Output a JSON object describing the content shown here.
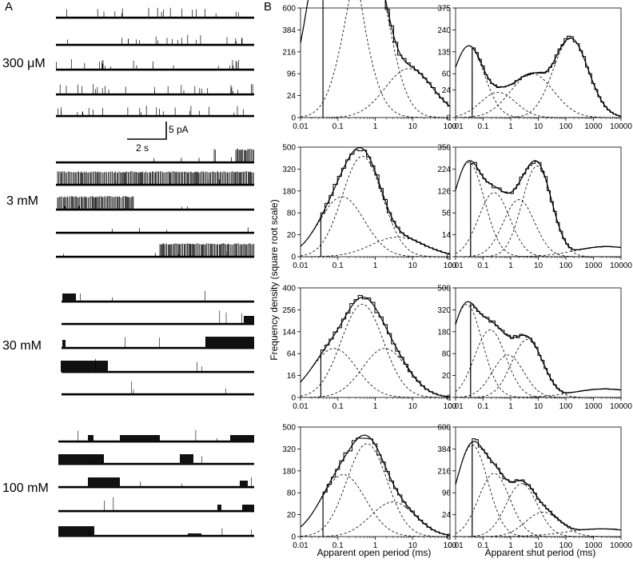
{
  "figure": {
    "panel_a_label": "A",
    "panel_b_label": "B",
    "scale_bar": {
      "current_label": "5 pA",
      "time_label": "2 s"
    },
    "y_axis_label": "Frequency density (square root scale)",
    "x_axis_label_open": "Apparent open period (ms)",
    "x_axis_label_shut": "Apparent shut period (ms)"
  },
  "traces": [
    {
      "concentration": "300 μM",
      "pattern": "brief-openings"
    },
    {
      "concentration": "3 mM",
      "pattern": "clustered-bursts"
    },
    {
      "concentration": "30 mM",
      "pattern": "reduced-amplitude-clusters"
    },
    {
      "concentration": "100 mM",
      "pattern": "sparse-block-clusters"
    }
  ],
  "chart_data": [
    {
      "type": "line",
      "panel": "open-300uM",
      "concentration": "300 μM",
      "xscale": "log",
      "yscale": "sqrt",
      "xlim": [
        0.01,
        100
      ],
      "ylim": [
        0,
        600
      ],
      "x_ticks": [
        "0.01",
        "0.1",
        "1",
        "10",
        "100"
      ],
      "y_ticks": [
        "0",
        "24",
        "96",
        "216",
        "384",
        "600"
      ],
      "resolution_ms": 0.04,
      "components": [
        {
          "area": 2800,
          "mode": 0.08,
          "width": 0.42
        },
        {
          "area": 1500,
          "mode": 0.6,
          "width": 0.38
        },
        {
          "area": 120,
          "mode": 8,
          "width": 0.45
        }
      ]
    },
    {
      "type": "line",
      "panel": "shut-300uM",
      "concentration": "300 μM",
      "xscale": "log",
      "yscale": "sqrt",
      "xlim": [
        0.01,
        10000
      ],
      "ylim": [
        0,
        375
      ],
      "x_ticks": [
        "0.01",
        "0.1",
        "1",
        "10",
        "100",
        "1000",
        "10000"
      ],
      "y_ticks": [
        "0",
        "24",
        "60",
        "135",
        "240",
        "375"
      ],
      "resolution_ms": 0.04,
      "components": [
        {
          "area": 160,
          "mode": 0.03,
          "width": 0.4
        },
        {
          "area": 20,
          "mode": 0.35,
          "width": 0.45
        },
        {
          "area": 60,
          "mode": 6,
          "width": 0.55
        },
        {
          "area": 195,
          "mode": 150,
          "width": 0.45
        }
      ]
    },
    {
      "type": "line",
      "panel": "open-3mM",
      "concentration": "3 mM",
      "xscale": "log",
      "yscale": "sqrt",
      "xlim": [
        0.01,
        100
      ],
      "ylim": [
        0,
        500
      ],
      "x_ticks": [
        "0.01",
        "0.1",
        "1",
        "10",
        "100"
      ],
      "y_ticks": [
        "0",
        "20",
        "80",
        "180",
        "320",
        "500"
      ],
      "resolution_ms": 0.035,
      "components": [
        {
          "area": 150,
          "mode": 0.13,
          "width": 0.42
        },
        {
          "area": 420,
          "mode": 0.45,
          "width": 0.38
        },
        {
          "area": 16,
          "mode": 4,
          "width": 0.5
        }
      ]
    },
    {
      "type": "line",
      "panel": "shut-3mM",
      "concentration": "3 mM",
      "xscale": "log",
      "yscale": "sqrt",
      "xlim": [
        0.01,
        10000
      ],
      "ylim": [
        0,
        350
      ],
      "x_ticks": [
        "0.01",
        "0.1",
        "1",
        "10",
        "100",
        "1000",
        "10000"
      ],
      "y_ticks": [
        "0",
        "14",
        "56",
        "126",
        "224",
        "350"
      ],
      "resolution_ms": 0.035,
      "components": [
        {
          "area": 260,
          "mode": 0.03,
          "width": 0.4
        },
        {
          "area": 120,
          "mode": 0.25,
          "width": 0.4
        },
        {
          "area": 95,
          "mode": 2,
          "width": 0.4
        },
        {
          "area": 240,
          "mode": 9,
          "width": 0.38
        },
        {
          "area": 3,
          "mode": 3000,
          "width": 0.8
        }
      ]
    },
    {
      "type": "line",
      "panel": "open-30mM",
      "concentration": "30 mM",
      "xscale": "log",
      "yscale": "sqrt",
      "xlim": [
        0.01,
        100
      ],
      "ylim": [
        0,
        400
      ],
      "x_ticks": [
        "0.01",
        "0.1",
        "1",
        "10",
        "100"
      ],
      "y_ticks": [
        "0",
        "16",
        "64",
        "144",
        "256",
        "400"
      ],
      "resolution_ms": 0.035,
      "components": [
        {
          "area": 80,
          "mode": 0.08,
          "width": 0.42
        },
        {
          "area": 290,
          "mode": 0.45,
          "width": 0.4
        },
        {
          "area": 80,
          "mode": 1.8,
          "width": 0.42
        }
      ]
    },
    {
      "type": "line",
      "panel": "shut-30mM",
      "concentration": "30 mM",
      "xscale": "log",
      "yscale": "sqrt",
      "xlim": [
        0.01,
        10000
      ],
      "ylim": [
        0,
        500
      ],
      "x_ticks": [
        "0.01",
        "0.1",
        "1",
        "10",
        "100",
        "1000",
        "10000"
      ],
      "y_ticks": [
        "0",
        "20",
        "80",
        "180",
        "320",
        "500"
      ],
      "resolution_ms": 0.035,
      "components": [
        {
          "area": 360,
          "mode": 0.025,
          "width": 0.4
        },
        {
          "area": 190,
          "mode": 0.18,
          "width": 0.4
        },
        {
          "area": 75,
          "mode": 0.8,
          "width": 0.4
        },
        {
          "area": 140,
          "mode": 4,
          "width": 0.4
        },
        {
          "area": 3,
          "mode": 2500,
          "width": 0.8
        }
      ]
    },
    {
      "type": "line",
      "panel": "open-100mM",
      "concentration": "100 mM",
      "xscale": "log",
      "yscale": "sqrt",
      "xlim": [
        0.01,
        100
      ],
      "ylim": [
        0,
        500
      ],
      "x_ticks": [
        "0.01",
        "0.1",
        "1",
        "10",
        "100"
      ],
      "y_ticks": [
        "0",
        "20",
        "80",
        "180",
        "320",
        "500"
      ],
      "resolution_ms": 0.04,
      "components": [
        {
          "area": 160,
          "mode": 0.14,
          "width": 0.42
        },
        {
          "area": 360,
          "mode": 0.6,
          "width": 0.38
        },
        {
          "area": 50,
          "mode": 3,
          "width": 0.42
        }
      ]
    },
    {
      "type": "line",
      "panel": "shut-100mM",
      "concentration": "100 mM",
      "xscale": "log",
      "yscale": "sqrt",
      "xlim": [
        0.01,
        10000
      ],
      "ylim": [
        0,
        600
      ],
      "x_ticks": [
        "0.01",
        "0.1",
        "1",
        "10",
        "100",
        "1000",
        "10000"
      ],
      "y_ticks": [
        "0",
        "24",
        "96",
        "216",
        "384",
        "600"
      ],
      "resolution_ms": 0.04,
      "components": [
        {
          "area": 420,
          "mode": 0.04,
          "width": 0.4
        },
        {
          "area": 200,
          "mode": 0.25,
          "width": 0.4
        },
        {
          "area": 140,
          "mode": 2.5,
          "width": 0.4
        },
        {
          "area": 30,
          "mode": 15,
          "width": 0.45
        },
        {
          "area": 3,
          "mode": 2000,
          "width": 0.9
        }
      ]
    }
  ]
}
